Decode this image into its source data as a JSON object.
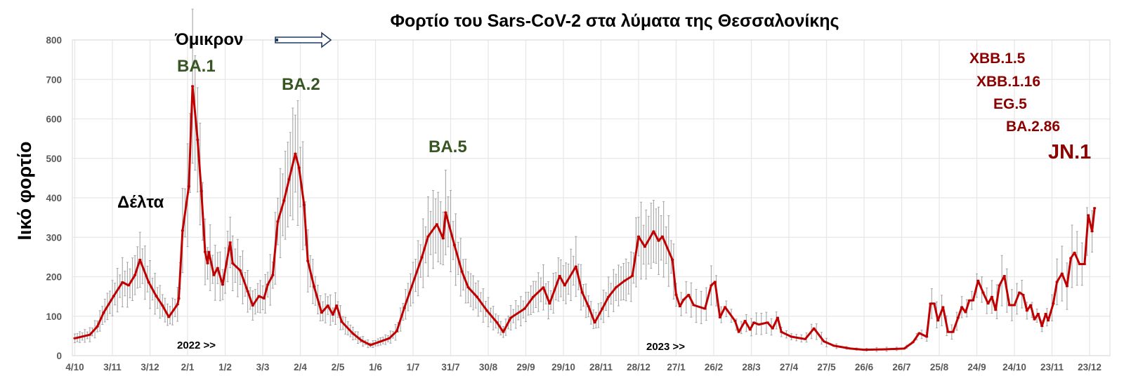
{
  "chart_data": {
    "type": "line",
    "title": "Φορτίο του Sars-CoV-2 στα λύματα της Θεσσαλονίκης",
    "xlabel": "",
    "ylabel": "Ιικό φορτίο",
    "ylim": [
      0,
      800
    ],
    "yticks": [
      0,
      100,
      200,
      300,
      400,
      500,
      600,
      700,
      800
    ],
    "grid": true,
    "x_unit": "days since 4/10/2021",
    "xlim": [
      0,
      830
    ],
    "xtick_days": [
      0,
      30,
      60,
      90,
      120,
      150,
      180,
      210,
      240,
      270,
      300,
      330,
      360,
      390,
      420,
      450,
      480,
      510,
      540,
      570,
      600,
      630,
      660,
      690,
      720,
      750,
      780,
      810
    ],
    "xtick_labels": [
      "4/10",
      "3/11",
      "3/12",
      "2/1",
      "1/2",
      "3/3",
      "2/4",
      "2/5",
      "1/6",
      "1/7",
      "31/7",
      "30/8",
      "29/9",
      "29/10",
      "28/11",
      "28/12",
      "27/1",
      "26/2",
      "28/3",
      "27/4",
      "27/5",
      "26/6",
      "26/7",
      "25/8",
      "24/9",
      "24/10",
      "23/11",
      "23/12"
    ],
    "series": [
      {
        "name": "Ιικό φορτίο",
        "color": "#c00000",
        "error_bar_color": "#a6a6a6",
        "relative_error": 0.25,
        "x": [
          0,
          12,
          18,
          23,
          31,
          38,
          43,
          48,
          52,
          59,
          65,
          70,
          75,
          82,
          83,
          86,
          91,
          94,
          98,
          101,
          104,
          106,
          107,
          111,
          114,
          118,
          124,
          126,
          132,
          138,
          142,
          147,
          151,
          154,
          158,
          162,
          167,
          171,
          176,
          179,
          183,
          186,
          191,
          197,
          202,
          206,
          209,
          213,
          222,
          229,
          236,
          244,
          251,
          257,
          263,
          277,
          282,
          289,
          294,
          296,
          303,
          309,
          314,
          321,
          329,
          337,
          342,
          348,
          359,
          366,
          374,
          379,
          387,
          391,
          400,
          405,
          410,
          415,
          421,
          426,
          432,
          439,
          445,
          450,
          455,
          462,
          466,
          469,
          477,
          480,
          483,
          486,
          490,
          494,
          503,
          508,
          511,
          515,
          519,
          527,
          530,
          535,
          539,
          542,
          546,
          553,
          557,
          561,
          564,
          572,
          583,
          590,
          598,
          606,
          619,
          630,
          647,
          662,
          669,
          674,
          680,
          683,
          686,
          689,
          693,
          697,
          701,
          705,
          708,
          711,
          714,
          717,
          721,
          725,
          729,
          732,
          735,
          738,
          742,
          746,
          750,
          754,
          757,
          760,
          763,
          766,
          769,
          772,
          775,
          777,
          781,
          784,
          788,
          792,
          795,
          798,
          802,
          806,
          809,
          812,
          814
        ],
        "values": [
          44,
          53,
          74,
          109,
          151,
          186,
          178,
          204,
          243,
          186,
          151,
          127,
          98,
          130,
          145,
          317,
          429,
          683,
          547,
          417,
          263,
          234,
          263,
          204,
          222,
          180,
          287,
          234,
          216,
          163,
          127,
          151,
          145,
          180,
          204,
          340,
          393,
          447,
          512,
          476,
          382,
          240,
          175,
          109,
          127,
          104,
          127,
          86,
          56,
          38,
          27,
          36,
          44,
          62,
          121,
          249,
          302,
          333,
          297,
          363,
          280,
          213,
          173,
          149,
          114,
          84,
          60,
          96,
          119,
          149,
          173,
          132,
          202,
          178,
          226,
          160,
          125,
          84,
          119,
          149,
          173,
          190,
          202,
          302,
          276,
          315,
          291,
          302,
          243,
          154,
          125,
          142,
          154,
          128,
          119,
          178,
          187,
          97,
          123,
          88,
          60,
          88,
          66,
          84,
          79,
          84,
          69,
          96,
          60,
          48,
          42,
          69,
          36,
          25,
          18,
          15,
          16,
          18,
          34,
          57,
          48,
          132,
          132,
          89,
          123,
          60,
          60,
          96,
          123,
          110,
          140,
          140,
          190,
          160,
          132,
          149,
          116,
          178,
          202,
          128,
          128,
          160,
          154,
          114,
          128,
          92,
          106,
          75,
          106,
          89,
          132,
          187,
          208,
          176,
          247,
          261,
          232,
          232,
          356,
          315,
          374
        ]
      }
    ],
    "annotations": {
      "delta": "Δέλτα",
      "omicron": "Όμικρον",
      "ba1": "BA.1",
      "ba2": "BA.2",
      "ba5": "BA.5",
      "year_2022": "2022 >>",
      "year_2023": "2023 >>",
      "xbb15": "XBB.1.5",
      "xbb116": "XBB.1.16",
      "eg5": "EG.5",
      "ba286": "BA.2.86",
      "jn1": "JN.1"
    }
  }
}
